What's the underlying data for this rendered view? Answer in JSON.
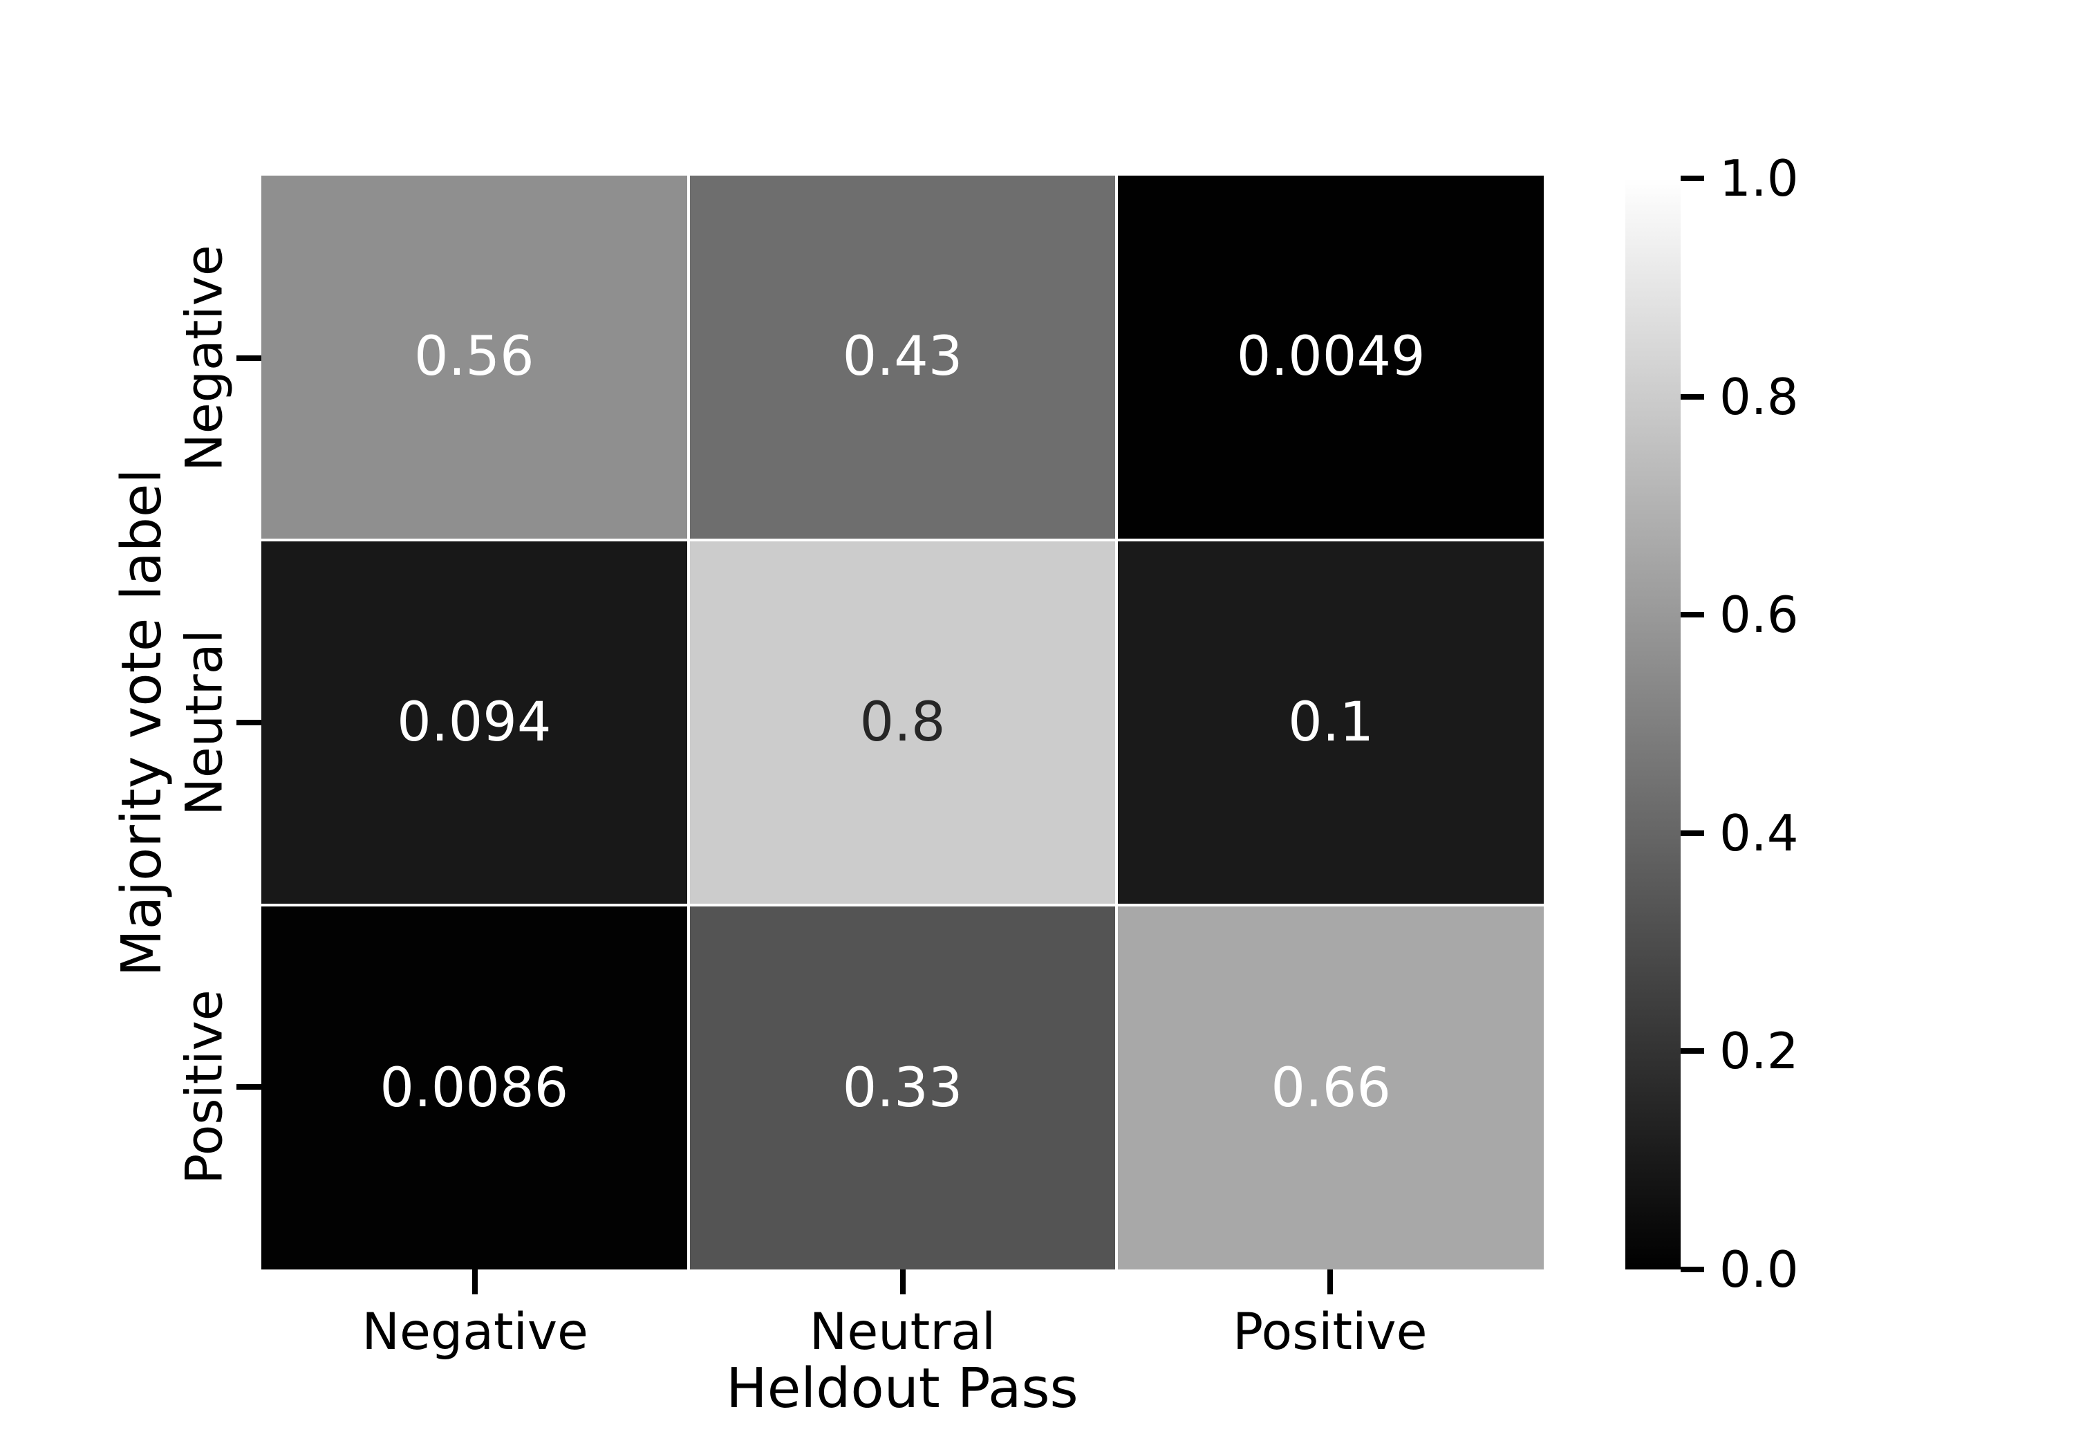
{
  "chart_data": {
    "type": "heatmap",
    "title": "",
    "xlabel": "Heldout Pass",
    "ylabel": "Majority vote label",
    "x_categories": [
      "Negative",
      "Neutral",
      "Positive"
    ],
    "y_categories": [
      "Negative",
      "Neutral",
      "Positive"
    ],
    "values": [
      [
        0.56,
        0.43,
        0.0049
      ],
      [
        0.094,
        0.8,
        0.1
      ],
      [
        0.0086,
        0.33,
        0.66
      ]
    ],
    "cell_labels": [
      [
        "0.56",
        "0.43",
        "0.0049"
      ],
      [
        "0.094",
        "0.8",
        "0.1"
      ],
      [
        "0.0086",
        "0.33",
        "0.66"
      ]
    ],
    "value_range": [
      0.0,
      1.0
    ],
    "colormap": "gray",
    "grid_line_color": "#ffffff",
    "background_color": "#ffffff",
    "annotation_light_color": "#ffffff",
    "annotation_dark_color": "#262626",
    "dark_text_threshold": 0.7,
    "colorbar": {
      "position": "right",
      "gradient_top": "#ffffff",
      "gradient_bottom": "#000000",
      "ticks": [
        {
          "label": "1.0",
          "value": 1.0
        },
        {
          "label": "0.8",
          "value": 0.8
        },
        {
          "label": "0.6",
          "value": 0.6
        },
        {
          "label": "0.4",
          "value": 0.4
        },
        {
          "label": "0.2",
          "value": 0.2
        },
        {
          "label": "0.0",
          "value": 0.0
        }
      ]
    }
  }
}
